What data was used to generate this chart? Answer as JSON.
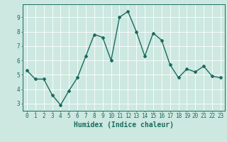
{
  "x": [
    0,
    1,
    2,
    3,
    4,
    5,
    6,
    7,
    8,
    9,
    10,
    11,
    12,
    13,
    14,
    15,
    16,
    17,
    18,
    19,
    20,
    21,
    22,
    23
  ],
  "y": [
    5.3,
    4.7,
    4.7,
    3.6,
    2.9,
    3.9,
    4.8,
    6.3,
    7.8,
    7.6,
    6.0,
    9.0,
    9.4,
    8.0,
    6.3,
    7.9,
    7.4,
    5.7,
    4.8,
    5.4,
    5.2,
    5.6,
    4.9,
    4.8
  ],
  "line_color": "#1a6b5e",
  "marker": "D",
  "marker_size": 2,
  "linewidth": 1.0,
  "xlabel": "Humidex (Indice chaleur)",
  "xlabel_fontsize": 7,
  "xlim": [
    -0.5,
    23.5
  ],
  "ylim": [
    2.5,
    9.9
  ],
  "yticks": [
    3,
    4,
    5,
    6,
    7,
    8,
    9
  ],
  "xticks": [
    0,
    1,
    2,
    3,
    4,
    5,
    6,
    7,
    8,
    9,
    10,
    11,
    12,
    13,
    14,
    15,
    16,
    17,
    18,
    19,
    20,
    21,
    22,
    23
  ],
  "bg_color": "#cce8e0",
  "grid_color": "#ffffff",
  "tick_color": "#1a6b5e",
  "tick_fontsize": 5.5,
  "fig_bg_color": "#cce8e0",
  "spine_color": "#1a6b5e"
}
